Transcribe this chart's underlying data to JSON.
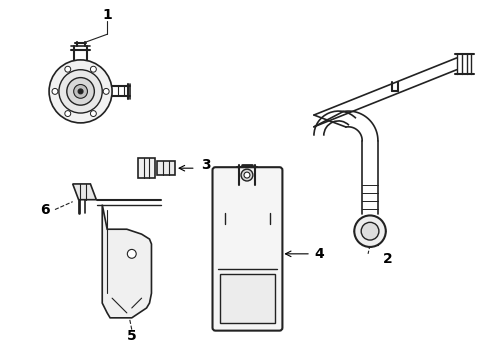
{
  "bg_color": "#ffffff",
  "line_color": "#222222",
  "label_color": "#000000",
  "figsize": [
    4.9,
    3.6
  ],
  "dpi": 100,
  "label_fontsize": 10
}
